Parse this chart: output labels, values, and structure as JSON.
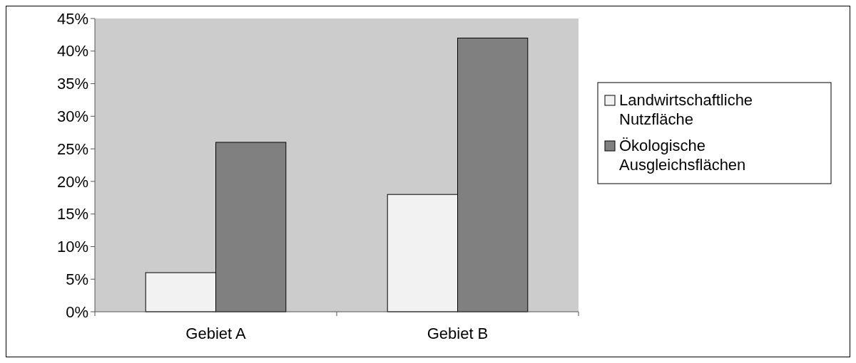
{
  "chart_data": {
    "type": "bar",
    "categories": [
      "Gebiet A",
      "Gebiet B"
    ],
    "series": [
      {
        "name": "Landwirtschaftliche Nutzfläche",
        "color": "#f2f2f2",
        "values": [
          6,
          18
        ]
      },
      {
        "name": "Ökologische Ausgleichsflächen",
        "color": "#808080",
        "values": [
          26,
          42
        ]
      }
    ],
    "ylim": [
      0,
      45
    ],
    "yticks": [
      {
        "value": 0,
        "label": "0%"
      },
      {
        "value": 5,
        "label": "5%"
      },
      {
        "value": 10,
        "label": "10%"
      },
      {
        "value": 15,
        "label": "15%"
      },
      {
        "value": 20,
        "label": "20%"
      },
      {
        "value": 25,
        "label": "25%"
      },
      {
        "value": 30,
        "label": "30%"
      },
      {
        "value": 35,
        "label": "35%"
      },
      {
        "value": 40,
        "label": "40%"
      },
      {
        "value": 45,
        "label": "45%"
      }
    ],
    "grid": false,
    "legend": "right"
  }
}
